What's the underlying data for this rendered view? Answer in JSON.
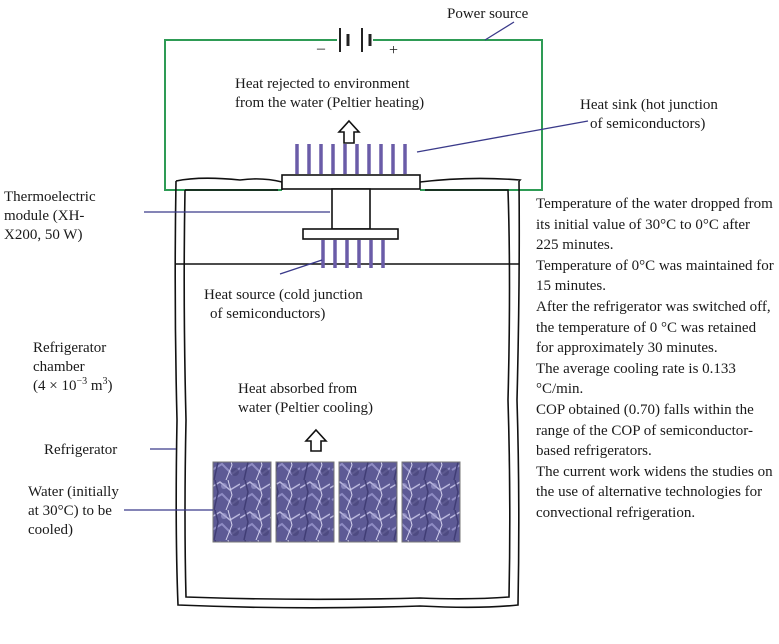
{
  "labels": {
    "power_source": "Power source",
    "minus": "–",
    "plus": "+",
    "heat_rejected": [
      "Heat rejected to environment",
      "from the water (Peltier heating)"
    ],
    "heat_sink": [
      "Heat sink (hot junction",
      "of semiconductors)"
    ],
    "thermoelectric_module": [
      "Thermoelectric",
      "module (XH-",
      "X200, 50 W)"
    ],
    "heat_source": [
      "Heat source (cold junction",
      "of semiconductors)"
    ],
    "refrigerator_chamber": [
      "Refrigerator",
      "chamber"
    ],
    "chamber_volume": "(4 × 10",
    "chamber_volume_exp": "−3",
    "chamber_volume_unit": " m",
    "chamber_volume_unit_exp": "3",
    "chamber_volume_close": ")",
    "heat_absorbed": [
      "Heat absorbed from",
      "water (Peltier cooling)"
    ],
    "refrigerator": "Refrigerator",
    "water": [
      "Water (initially",
      "at 30°C) to be",
      "cooled)"
    ]
  },
  "summary": [
    "Temperature of the water dropped from its initial value of 30°C to 0°C after 225 minutes.",
    " Temperature of 0°C was maintained for 15 minutes.",
    "After the refrigerator was switched off, the temperature of 0 °C was retained for approximately 30 minutes.",
    " The average cooling rate is 0.133 °C/min.",
    "COP obtained (0.70) falls within the range of the COP of semiconductor-based refrigerators.",
    "The current work widens the studies on the use of alternative technologies for convectional refrigeration."
  ],
  "colors": {
    "circuit_wire": "#2e9b55",
    "fins": "#6a5ca8",
    "leader_lines": "#3a3a8a",
    "outline": "#111111",
    "ice": "#6a68a0"
  },
  "icons": [
    "battery-icon",
    "up-arrow-icon",
    "ice-block-icon"
  ]
}
